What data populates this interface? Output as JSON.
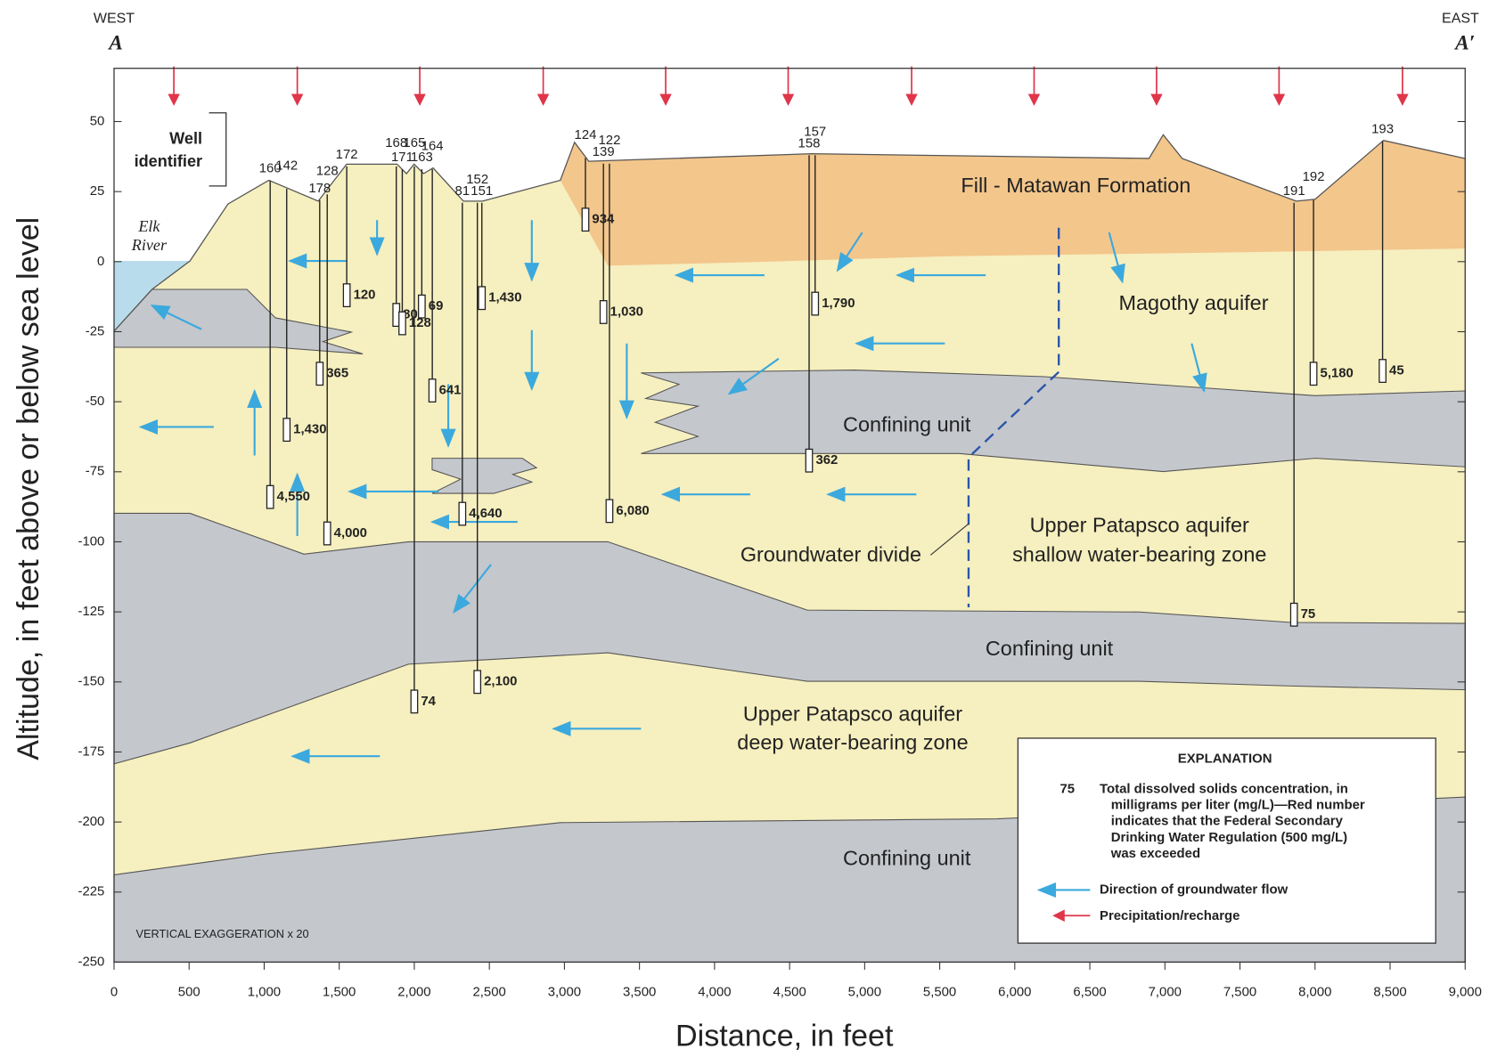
{
  "header": {
    "west": "WEST",
    "start": "A",
    "east": "EAST",
    "end": "A′"
  },
  "axes": {
    "ylabel": "Altitude, in feet above or below sea level",
    "xlabel": "Distance, in feet",
    "xlim": [
      0,
      9000
    ],
    "ylim": [
      -250,
      69
    ],
    "xticks": [
      0,
      500,
      {
        "value": 1000,
        "label": "1,000"
      },
      {
        "value": 1500,
        "label": "1,500"
      },
      {
        "value": 2000,
        "label": "2,000"
      },
      {
        "value": 2500,
        "label": "2,500"
      },
      {
        "value": 3000,
        "label": "3,000"
      },
      {
        "value": 3500,
        "label": "3,500"
      },
      {
        "value": 4000,
        "label": "4,000"
      },
      {
        "value": 4500,
        "label": "4,500"
      },
      {
        "value": 5000,
        "label": "5,000"
      },
      {
        "value": 5500,
        "label": "5,500"
      },
      {
        "value": 6000,
        "label": "6,000"
      },
      {
        "value": 6500,
        "label": "6,500"
      },
      {
        "value": 7000,
        "label": "7,000"
      },
      {
        "value": 7500,
        "label": "7,500"
      },
      {
        "value": 8000,
        "label": "8,000"
      },
      {
        "value": 8500,
        "label": "8,500"
      },
      {
        "value": 9000,
        "label": "9,000"
      }
    ],
    "yticks": [
      50,
      25,
      0,
      -25,
      -50,
      -75,
      -100,
      -125,
      -150,
      -175,
      -200,
      -225,
      -250
    ]
  },
  "labels": {
    "well_identifier": [
      "Well",
      "identifier"
    ],
    "river": [
      "Elk",
      "River"
    ],
    "fill": "Fill - Matawan Formation",
    "magothy": "Magothy aquifer",
    "confining": "Confining unit",
    "upper_shallow": [
      "Upper Patapsco aquifer",
      "shallow water-bearing zone"
    ],
    "divide": "Groundwater divide",
    "upper_deep": [
      "Upper Patapsco aquifer",
      "deep water-bearing zone"
    ],
    "exaggeration": "VERTICAL EXAGGERATION x 20"
  },
  "wells": [
    {
      "id": "160",
      "x": 1040,
      "top": 29,
      "screen": -84,
      "tds": "4,550",
      "color": "#e0354a"
    },
    {
      "id": "142",
      "x": 1150,
      "top": 26,
      "screen": -60,
      "tds": "1,430",
      "color": "#e0354a"
    },
    {
      "id": "178",
      "x": 1370,
      "top": 22,
      "screen": -40,
      "tds": "365",
      "color": "#111"
    },
    {
      "id": "128",
      "x": 1420,
      "top": 24,
      "screen": -97,
      "tds": "4,000",
      "color": "#e0354a"
    },
    {
      "id": "172",
      "x": 1550,
      "top": 34,
      "screen": -12,
      "tds": "120",
      "color": "#111"
    },
    {
      "id": "168",
      "x": 1880,
      "top": 34,
      "screen": -19,
      "tds": "80",
      "color": "#111"
    },
    {
      "id": "171",
      "x": 1920,
      "top": 33,
      "screen": -22,
      "tds": "128",
      "color": "#111"
    },
    {
      "id": "165",
      "x": 2000,
      "top": 34,
      "screen": -157,
      "tds": "74",
      "color": "#111"
    },
    {
      "id": "163",
      "x": 2050,
      "top": 33,
      "screen": -16,
      "tds": "69",
      "color": "#111"
    },
    {
      "id": "164",
      "x": 2120,
      "top": 33,
      "screen": -46,
      "tds": "641",
      "color": "#e0354a"
    },
    {
      "id": "81",
      "x": 2320,
      "top": 21,
      "screen": -90,
      "tds": "4,640",
      "color": "#e0354a"
    },
    {
      "id": "152",
      "x": 2420,
      "top": 21,
      "screen": -150,
      "tds": "2,100",
      "color": "#e0354a"
    },
    {
      "id": "151",
      "x": 2450,
      "top": 21,
      "screen": -13,
      "tds": "1,430",
      "color": "#e0354a"
    },
    {
      "id": "124",
      "x": 3140,
      "top": 37,
      "screen": 15,
      "tds": "934",
      "color": "#e0354a"
    },
    {
      "id": "139",
      "x": 3260,
      "top": 35,
      "screen": -18,
      "tds": "1,030",
      "color": "#e0354a"
    },
    {
      "id": "122",
      "x": 3300,
      "top": 35,
      "screen": -89,
      "tds": "6,080",
      "color": "#e0354a"
    },
    {
      "id": "158",
      "x": 4630,
      "top": 38,
      "screen": -71,
      "tds": "362",
      "color": "#111"
    },
    {
      "id": "157",
      "x": 4670,
      "top": 38,
      "screen": -15,
      "tds": "1,790",
      "color": "#e0354a"
    },
    {
      "id": "191",
      "x": 7860,
      "top": 21,
      "screen": -126,
      "tds": "75",
      "color": "#111"
    },
    {
      "id": "192",
      "x": 7990,
      "top": 22,
      "screen": -40,
      "tds": "5,180",
      "color": "#e0354a"
    },
    {
      "id": "193",
      "x": 8450,
      "top": 43,
      "screen": -39,
      "tds": "45",
      "color": "#111"
    }
  ],
  "explanation": {
    "title": "EXPLANATION",
    "sample": "75",
    "tds": [
      "Total dissolved solids concentration, in",
      "milligrams per liter (mg/L)—Red number",
      "indicates that the Federal Secondary",
      "Drinking Water Regulation (500 mg/L)",
      "was exceeded"
    ],
    "flow": "Direction of groundwater flow",
    "recharge": "Precipitation/recharge"
  }
}
